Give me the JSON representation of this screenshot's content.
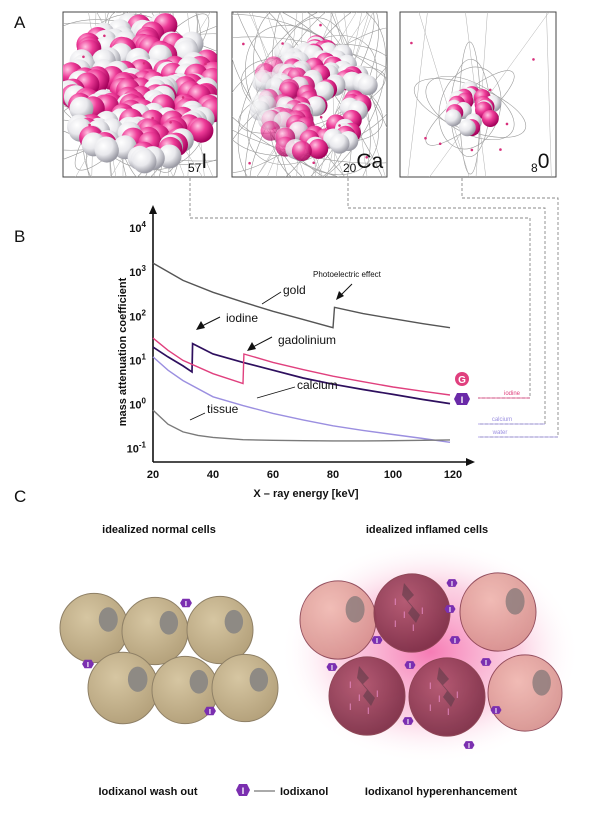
{
  "panels": {
    "a": "A",
    "b": "B",
    "c": "C"
  },
  "atoms": [
    {
      "sub": "57",
      "sym": "I"
    },
    {
      "sub": "20",
      "sym": "Ca"
    },
    {
      "sub": "8",
      "sym": "0"
    }
  ],
  "chart_data": {
    "type": "line",
    "xlabel": "X – ray energy [keV]",
    "ylabel": "mass attenuation coefficient",
    "xlim": [
      20,
      120
    ],
    "ylim": [
      0.05,
      10000
    ],
    "yscale": "log",
    "x_ticks": [
      "20",
      "40",
      "60",
      "80",
      "100",
      "120"
    ],
    "y_ticks": [
      {
        "base": "10",
        "exp": "4",
        "value": 10000
      },
      {
        "base": "10",
        "exp": "3",
        "value": 1000
      },
      {
        "base": "10",
        "exp": "2",
        "value": 100
      },
      {
        "base": "10",
        "exp": "1",
        "value": 10
      },
      {
        "base": "10",
        "exp": "0",
        "value": 1
      },
      {
        "base": "10",
        "exp": "-1",
        "value": 0.1
      }
    ],
    "series": [
      {
        "name": "gold",
        "color": "#555555",
        "x": [
          20,
          30,
          40,
          50,
          60,
          70,
          80,
          80.5,
          90,
          100,
          110,
          119
        ],
        "y": [
          1600,
          650,
          350,
          210,
          130,
          85,
          55,
          160,
          115,
          88,
          68,
          55
        ]
      },
      {
        "name": "iodine",
        "color": "#2e0f5e",
        "x": [
          20,
          25,
          30,
          33,
          33.2,
          40,
          50,
          60,
          70,
          80,
          90,
          100,
          110,
          119
        ],
        "y": [
          20,
          12,
          7.5,
          5.5,
          24,
          14,
          9,
          6,
          4,
          2.9,
          2.2,
          1.7,
          1.3,
          1.05
        ]
      },
      {
        "name": "gadolinium",
        "color": "#e0407e",
        "x": [
          20,
          25,
          30,
          40,
          50,
          50.3,
          60,
          70,
          80,
          90,
          100,
          110,
          119
        ],
        "y": [
          32,
          17,
          10,
          5,
          3,
          14,
          9,
          6.2,
          4.4,
          3.3,
          2.5,
          2,
          1.65
        ]
      },
      {
        "name": "calcium",
        "color": "#9b8fe0",
        "x": [
          20,
          25,
          30,
          40,
          50,
          60,
          70,
          80,
          90,
          100,
          110,
          119
        ],
        "y": [
          12,
          6,
          3.5,
          1.5,
          0.95,
          0.63,
          0.45,
          0.33,
          0.26,
          0.21,
          0.17,
          0.14
        ]
      },
      {
        "name": "tissue",
        "color": "#7a7a7a",
        "x": [
          20,
          25,
          30,
          35,
          40,
          50,
          60,
          70,
          80,
          90,
          100,
          110,
          119
        ],
        "y": [
          0.75,
          0.36,
          0.24,
          0.2,
          0.18,
          0.16,
          0.155,
          0.152,
          0.15,
          0.15,
          0.152,
          0.155,
          0.158
        ]
      }
    ],
    "annotations": {
      "photoelectric": "Photoelectric effect",
      "gold": "gold",
      "iodine": "iodine",
      "gadolinium": "gadolinium",
      "calcium": "calcium",
      "tissue": "tissue"
    },
    "markers": [
      {
        "letter": "G",
        "color": "#e0407e"
      },
      {
        "letter": "I",
        "color": "#6a2aa8"
      }
    ],
    "legend_lines": [
      {
        "label": "iodine",
        "color": "#e0407e"
      },
      {
        "label": "calcium",
        "color": "#9b8fe0"
      },
      {
        "label": "water",
        "color": "#9b8fe0"
      }
    ]
  },
  "cells": {
    "normal_title": "idealized normal cells",
    "inflamed_title": "idealized inflamed cells",
    "washout": "Iodixanol wash out",
    "legend_label": "Iodixanol",
    "hyper": "Iodixanol hyperenhancement",
    "marker_letter": "I",
    "cell_color": "#c9b793",
    "inflamed_color": "#9e3a5a",
    "glow_color": "#f79cc3",
    "marker_color": "#7b2fb0"
  }
}
